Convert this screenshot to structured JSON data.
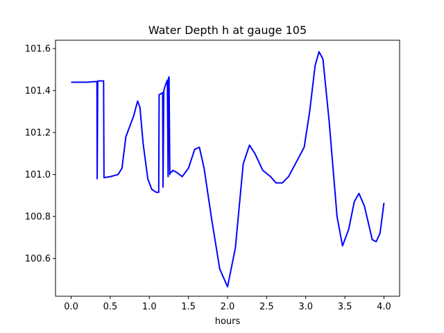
{
  "chart_data": {
    "type": "line",
    "title": "Water Depth h at gauge 105",
    "xlabel": "hours",
    "ylabel": "",
    "xlim": [
      -0.2,
      4.2
    ],
    "ylim": [
      100.42,
      101.64
    ],
    "xticks": [
      0.0,
      0.5,
      1.0,
      1.5,
      2.0,
      2.5,
      3.0,
      3.5,
      4.0
    ],
    "xtick_labels": [
      "0.0",
      "0.5",
      "1.0",
      "1.5",
      "2.0",
      "2.5",
      "3.0",
      "3.5",
      "4.0"
    ],
    "yticks": [
      100.6,
      100.8,
      101.0,
      101.2,
      101.4,
      101.6
    ],
    "ytick_labels": [
      "100.6",
      "100.8",
      "101.0",
      "101.2",
      "101.4",
      "101.6"
    ],
    "grid": false,
    "series": [
      {
        "color": "#0000ff",
        "x": [
          0.0,
          0.1,
          0.2,
          0.3,
          0.33,
          0.333,
          0.34,
          0.35,
          0.4,
          0.415,
          0.42,
          0.5,
          0.6,
          0.65,
          0.7,
          0.75,
          0.8,
          0.85,
          0.88,
          0.92,
          0.98,
          1.03,
          1.09,
          1.12,
          1.125,
          1.17,
          1.175,
          1.185,
          1.2,
          1.22,
          1.23,
          1.24,
          1.245,
          1.252,
          1.262,
          1.265,
          1.28,
          1.3,
          1.35,
          1.42,
          1.5,
          1.58,
          1.64,
          1.7,
          1.8,
          1.9,
          2.0,
          2.1,
          2.2,
          2.28,
          2.35,
          2.45,
          2.55,
          2.62,
          2.7,
          2.78,
          2.88,
          2.98,
          3.05,
          3.12,
          3.17,
          3.22,
          3.3,
          3.4,
          3.47,
          3.55,
          3.62,
          3.68,
          3.75,
          3.85,
          3.9,
          3.95,
          4.0
        ],
        "y": [
          101.44,
          101.44,
          101.44,
          101.443,
          101.443,
          100.98,
          101.445,
          101.446,
          101.446,
          101.446,
          100.985,
          100.99,
          101.0,
          101.03,
          101.18,
          101.23,
          101.28,
          101.35,
          101.32,
          101.15,
          100.98,
          100.93,
          100.915,
          100.915,
          101.38,
          101.39,
          100.94,
          101.4,
          101.42,
          101.44,
          101.45,
          100.99,
          101.46,
          101.465,
          101.0,
          101.01,
          101.01,
          101.02,
          101.01,
          100.99,
          101.03,
          101.12,
          101.13,
          101.03,
          100.78,
          100.55,
          100.465,
          100.65,
          101.05,
          101.14,
          101.1,
          101.02,
          100.99,
          100.96,
          100.96,
          100.99,
          101.06,
          101.13,
          101.3,
          101.52,
          101.585,
          101.55,
          101.25,
          100.8,
          100.66,
          100.74,
          100.87,
          100.91,
          100.85,
          100.69,
          100.68,
          100.72,
          100.865
        ]
      }
    ]
  }
}
